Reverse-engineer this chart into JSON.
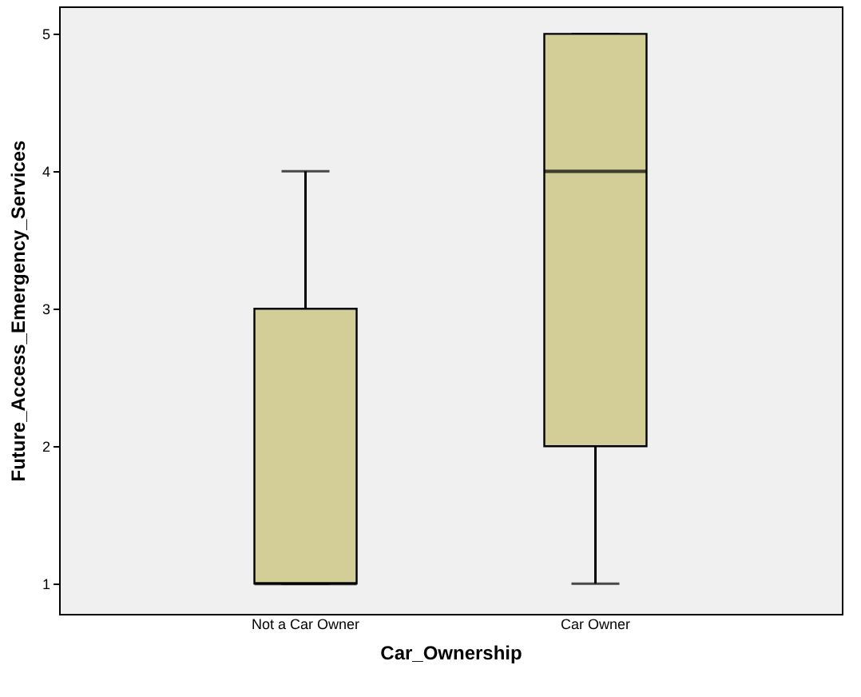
{
  "chart_data": {
    "type": "box",
    "xlabel": "Car_Ownership",
    "ylabel": "Future_Access_Emergency_Services",
    "categories": [
      "Not a Car Owner",
      "Car Owner"
    ],
    "series": [
      {
        "color": "#d3ce97",
        "boxes": [
          {
            "low": 1,
            "q1": 1,
            "median": 1,
            "q3": 3,
            "high": 4
          },
          {
            "low": 1,
            "q1": 2,
            "median": 4,
            "q3": 5,
            "high": 5
          }
        ]
      }
    ],
    "ylim": [
      0.78,
      5.2
    ],
    "yticks": [
      1,
      2,
      3,
      4,
      5
    ],
    "grid": false
  }
}
